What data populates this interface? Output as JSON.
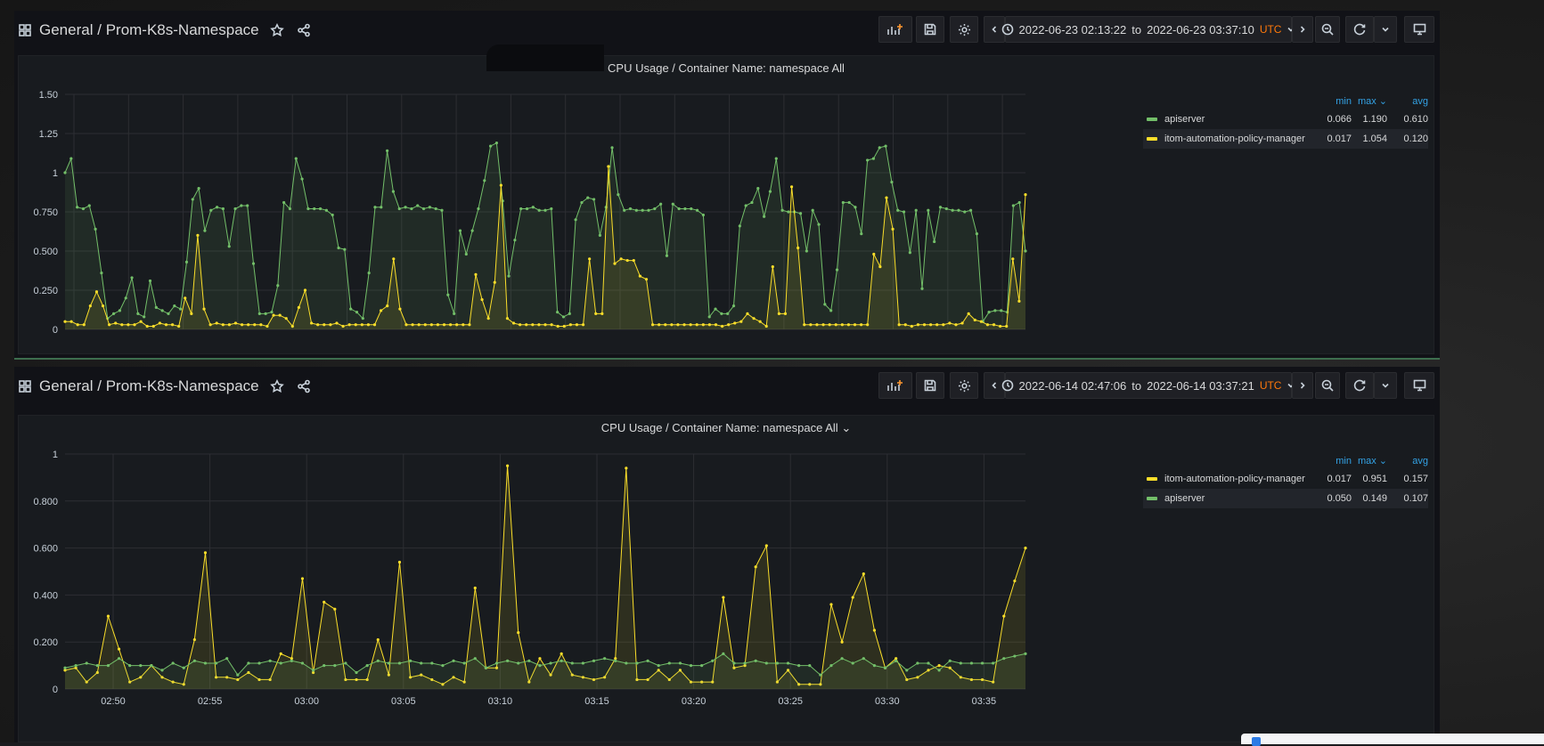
{
  "panels": [
    {
      "breadcrumb": {
        "folder": "General",
        "separator": "/",
        "dashboard": "Prom-K8s-Namespace"
      },
      "time_range": {
        "from": "2022-06-23 02:13:22",
        "to_word": "to",
        "to": "2022-06-23 03:37:10",
        "tz": "UTC"
      },
      "panel_title": "CPU Usage / Container Name: namespace All",
      "legend": {
        "headers": {
          "min": "min",
          "max": "max",
          "avg": "avg"
        },
        "rows": [
          {
            "name": "apiserver",
            "color": "#73bf69",
            "min": "0.066",
            "max": "1.190",
            "avg": "0.610"
          },
          {
            "name": "itom-automation-policy-manager",
            "color": "#fade2a",
            "min": "0.017",
            "max": "1.054",
            "avg": "0.120"
          }
        ]
      },
      "chart_data": {
        "type": "area",
        "title": "CPU Usage / Container Name: namespace All",
        "y_ticks": [
          "1.50",
          "1.25",
          "1",
          "0.750",
          "0.500",
          "0.250",
          "0"
        ],
        "ylim": [
          0,
          1.5
        ],
        "x_ticks": [],
        "grid": true,
        "legend_position": "right",
        "series": [
          {
            "name": "apiserver",
            "color": "#73bf69",
            "values": [
              1.0,
              1.09,
              0.78,
              0.77,
              0.79,
              0.64,
              0.36,
              0.07,
              0.1,
              0.12,
              0.2,
              0.33,
              0.1,
              0.08,
              0.31,
              0.14,
              0.12,
              0.1,
              0.15,
              0.13,
              0.43,
              0.83,
              0.9,
              0.63,
              0.76,
              0.78,
              0.77,
              0.53,
              0.77,
              0.79,
              0.79,
              0.42,
              0.1,
              0.1,
              0.11,
              0.28,
              0.81,
              0.77,
              1.09,
              0.96,
              0.77,
              0.77,
              0.77,
              0.76,
              0.73,
              0.52,
              0.51,
              0.13,
              0.11,
              0.07,
              0.36,
              0.78,
              0.78,
              1.14,
              0.88,
              0.77,
              0.78,
              0.77,
              0.79,
              0.77,
              0.78,
              0.77,
              0.76,
              0.22,
              0.1,
              0.63,
              0.48,
              0.63,
              0.77,
              0.95,
              1.17,
              1.19,
              0.82,
              0.34,
              0.57,
              0.77,
              0.77,
              0.78,
              0.76,
              0.76,
              0.77,
              0.11,
              0.08,
              0.1,
              0.7,
              0.81,
              0.84,
              0.83,
              0.6,
              0.78,
              1.16,
              0.86,
              0.76,
              0.77,
              0.76,
              0.76,
              0.76,
              0.77,
              0.8,
              0.47,
              0.8,
              0.77,
              0.77,
              0.77,
              0.76,
              0.73,
              0.08,
              0.13,
              0.1,
              0.1,
              0.15,
              0.66,
              0.79,
              0.81,
              0.9,
              0.72,
              0.88,
              1.09,
              0.76,
              0.75,
              0.75,
              0.74,
              0.5,
              0.76,
              0.67,
              0.16,
              0.12,
              0.38,
              0.81,
              0.81,
              0.78,
              0.61,
              1.08,
              1.09,
              1.16,
              1.17,
              0.94,
              0.76,
              0.75,
              0.49,
              0.76,
              0.26,
              0.76,
              0.56,
              0.78,
              0.77,
              0.76,
              0.76,
              0.75,
              0.76,
              0.61,
              0.05,
              0.11,
              0.12,
              0.12,
              0.11,
              0.79,
              0.81,
              0.5
            ]
          },
          {
            "name": "itom-automation-policy-manager",
            "color": "#fade2a",
            "values": [
              0.05,
              0.05,
              0.03,
              0.03,
              0.15,
              0.24,
              0.15,
              0.03,
              0.04,
              0.03,
              0.03,
              0.03,
              0.05,
              0.02,
              0.02,
              0.04,
              0.03,
              0.03,
              0.02,
              0.2,
              0.1,
              0.6,
              0.13,
              0.03,
              0.04,
              0.03,
              0.03,
              0.04,
              0.03,
              0.03,
              0.03,
              0.03,
              0.02,
              0.09,
              0.09,
              0.07,
              0.02,
              0.14,
              0.25,
              0.04,
              0.03,
              0.03,
              0.03,
              0.04,
              0.02,
              0.03,
              0.03,
              0.03,
              0.03,
              0.03,
              0.12,
              0.15,
              0.45,
              0.13,
              0.03,
              0.03,
              0.03,
              0.03,
              0.03,
              0.03,
              0.03,
              0.03,
              0.03,
              0.03,
              0.03,
              0.35,
              0.19,
              0.07,
              0.3,
              0.92,
              0.07,
              0.04,
              0.03,
              0.03,
              0.03,
              0.03,
              0.03,
              0.03,
              0.02,
              0.02,
              0.03,
              0.03,
              0.03,
              0.45,
              0.1,
              0.1,
              1.04,
              0.42,
              0.45,
              0.44,
              0.44,
              0.34,
              0.32,
              0.03,
              0.03,
              0.03,
              0.03,
              0.03,
              0.03,
              0.03,
              0.03,
              0.03,
              0.03,
              0.03,
              0.02,
              0.03,
              0.04,
              0.05,
              0.1,
              0.07,
              0.05,
              0.02,
              0.4,
              0.1,
              0.1,
              0.91,
              0.52,
              0.03,
              0.03,
              0.03,
              0.03,
              0.03,
              0.03,
              0.03,
              0.03,
              0.03,
              0.03,
              0.03,
              0.48,
              0.4,
              0.84,
              0.64,
              0.03,
              0.03,
              0.02,
              0.03,
              0.03,
              0.03,
              0.03,
              0.03,
              0.04,
              0.03,
              0.04,
              0.1,
              0.06,
              0.05,
              0.03,
              0.03,
              0.02,
              0.02,
              0.45,
              0.18,
              0.86
            ]
          }
        ]
      }
    },
    {
      "breadcrumb": {
        "folder": "General",
        "separator": "/",
        "dashboard": "Prom-K8s-Namespace"
      },
      "time_range": {
        "from": "2022-06-14 02:47:06",
        "to_word": "to",
        "to": "2022-06-14 03:37:21",
        "tz": "UTC"
      },
      "panel_title": "CPU Usage / Container Name: namespace All",
      "legend": {
        "headers": {
          "min": "min",
          "max": "max",
          "avg": "avg"
        },
        "rows": [
          {
            "name": "itom-automation-policy-manager",
            "color": "#fade2a",
            "min": "0.017",
            "max": "0.951",
            "avg": "0.157"
          },
          {
            "name": "apiserver",
            "color": "#73bf69",
            "min": "0.050",
            "max": "0.149",
            "avg": "0.107"
          }
        ]
      },
      "chart_data": {
        "type": "area",
        "title": "CPU Usage / Container Name: namespace All",
        "y_ticks": [
          "1",
          "0.800",
          "0.600",
          "0.400",
          "0.200",
          "0"
        ],
        "ylim": [
          0,
          1
        ],
        "x_ticks": [
          "02:50",
          "02:55",
          "03:00",
          "03:05",
          "03:10",
          "03:15",
          "03:20",
          "03:25",
          "03:30",
          "03:35"
        ],
        "grid": true,
        "legend_position": "right",
        "series": [
          {
            "name": "itom-automation-policy-manager",
            "color": "#fade2a",
            "values": [
              0.08,
              0.09,
              0.03,
              0.07,
              0.31,
              0.17,
              0.03,
              0.05,
              0.1,
              0.05,
              0.03,
              0.02,
              0.21,
              0.58,
              0.05,
              0.05,
              0.04,
              0.07,
              0.04,
              0.04,
              0.15,
              0.13,
              0.47,
              0.07,
              0.37,
              0.34,
              0.04,
              0.04,
              0.04,
              0.21,
              0.06,
              0.54,
              0.05,
              0.06,
              0.04,
              0.02,
              0.05,
              0.03,
              0.43,
              0.09,
              0.09,
              0.95,
              0.24,
              0.03,
              0.13,
              0.06,
              0.15,
              0.06,
              0.05,
              0.04,
              0.05,
              0.13,
              0.94,
              0.04,
              0.04,
              0.08,
              0.04,
              0.08,
              0.03,
              0.03,
              0.03,
              0.39,
              0.09,
              0.1,
              0.52,
              0.61,
              0.03,
              0.08,
              0.02,
              0.02,
              0.02,
              0.36,
              0.2,
              0.39,
              0.49,
              0.25,
              0.09,
              0.13,
              0.04,
              0.05,
              0.08,
              0.1,
              0.09,
              0.05,
              0.04,
              0.04,
              0.03,
              0.31,
              0.46,
              0.6
            ]
          },
          {
            "name": "apiserver",
            "color": "#73bf69",
            "values": [
              0.09,
              0.1,
              0.11,
              0.1,
              0.1,
              0.13,
              0.1,
              0.1,
              0.1,
              0.08,
              0.11,
              0.09,
              0.12,
              0.11,
              0.11,
              0.13,
              0.06,
              0.11,
              0.11,
              0.12,
              0.11,
              0.12,
              0.11,
              0.08,
              0.1,
              0.1,
              0.11,
              0.07,
              0.1,
              0.12,
              0.11,
              0.11,
              0.12,
              0.11,
              0.11,
              0.1,
              0.12,
              0.11,
              0.13,
              0.09,
              0.11,
              0.12,
              0.11,
              0.12,
              0.1,
              0.11,
              0.12,
              0.11,
              0.11,
              0.12,
              0.13,
              0.12,
              0.11,
              0.11,
              0.12,
              0.1,
              0.11,
              0.11,
              0.1,
              0.1,
              0.12,
              0.15,
              0.11,
              0.11,
              0.12,
              0.11,
              0.11,
              0.11,
              0.1,
              0.1,
              0.06,
              0.1,
              0.13,
              0.11,
              0.13,
              0.1,
              0.09,
              0.12,
              0.08,
              0.11,
              0.11,
              0.08,
              0.12,
              0.11,
              0.11,
              0.11,
              0.11,
              0.13,
              0.14,
              0.15
            ]
          }
        ]
      }
    }
  ]
}
